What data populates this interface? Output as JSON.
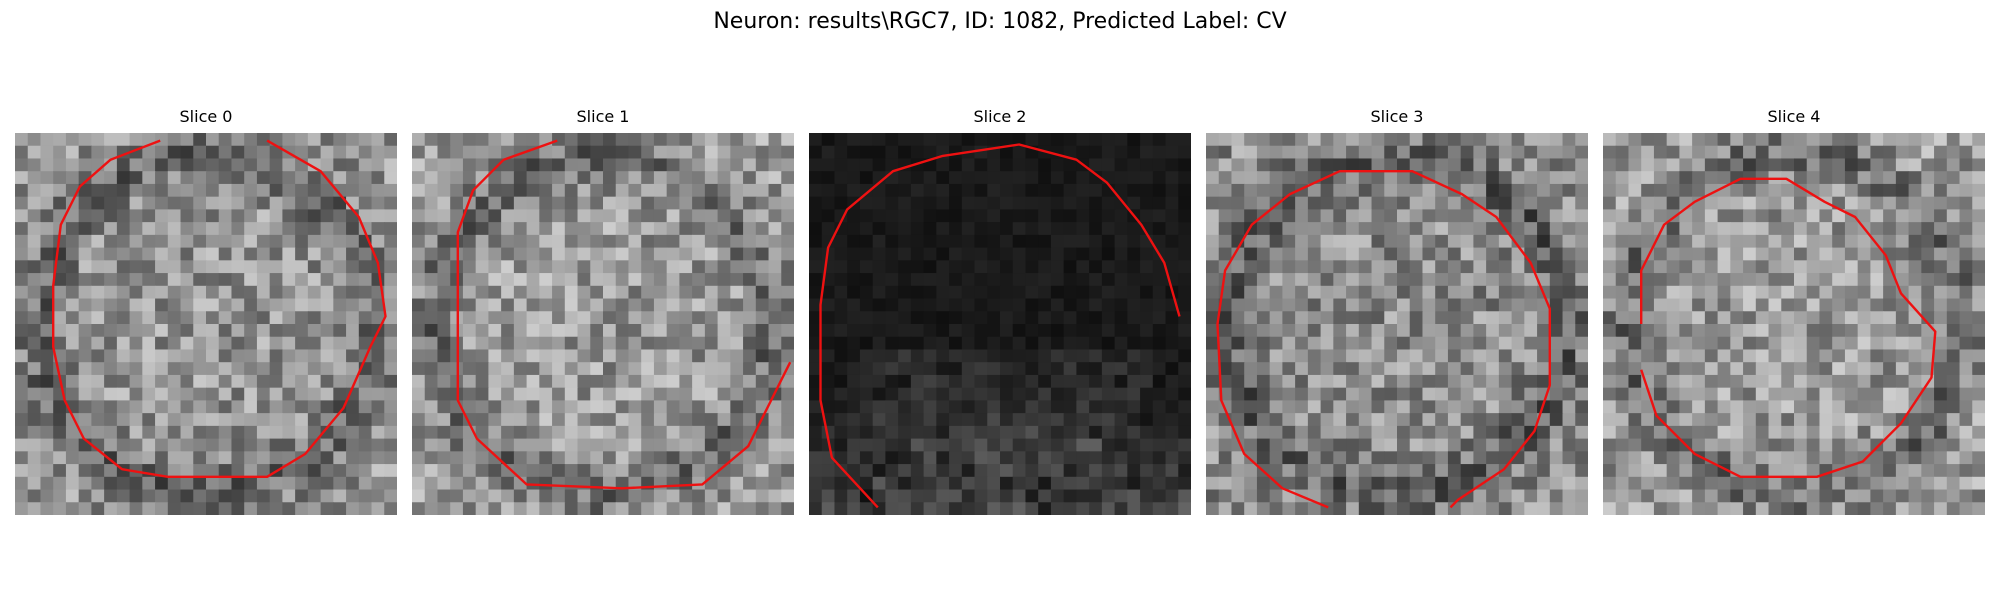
{
  "figure": {
    "title": "Neuron: results\\RGC7, ID: 1082, Predicted Label: CV"
  },
  "panels": [
    {
      "title": "Slice 0",
      "style": "gray-mid",
      "base_brightness": 0.58
    },
    {
      "title": "Slice 1",
      "style": "gray-mid",
      "base_brightness": 0.6
    },
    {
      "title": "Slice 2",
      "style": "dark",
      "base_brightness": 0.06
    },
    {
      "title": "Slice 3",
      "style": "gray-mid",
      "base_brightness": 0.55
    },
    {
      "title": "Slice 4",
      "style": "gray-mid",
      "base_brightness": 0.6
    }
  ],
  "colors": {
    "contour": "#ee1111",
    "background": "#ffffff"
  }
}
